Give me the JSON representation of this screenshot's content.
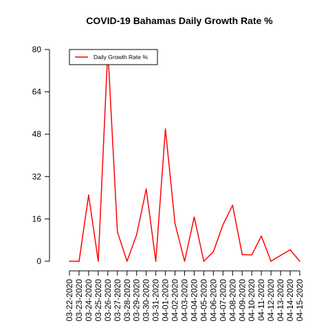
{
  "chart_data": {
    "type": "line",
    "title": "COVID-19 Bahamas Daily Growth Rate %",
    "xlabel": "",
    "ylabel": "",
    "categories": [
      "03-22-2020",
      "03-23-2020",
      "03-24-2020",
      "03-25-2020",
      "03-26-2020",
      "03-27-2020",
      "03-28-2020",
      "03-29-2020",
      "03-30-2020",
      "03-31-2020",
      "04-01-2020",
      "04-02-2020",
      "04-03-2020",
      "04-04-2020",
      "04-05-2020",
      "04-06-2020",
      "04-07-2020",
      "04-08-2020",
      "04-09-2020",
      "04-10-2020",
      "04-11-2020",
      "04-12-2020",
      "04-13-2020",
      "04-14-2020",
      "04-15-2020"
    ],
    "series": [
      {
        "name": "Daily Growth Rate %",
        "color": "#ff0000",
        "values": [
          0,
          0,
          25,
          0,
          80,
          11.1,
          0,
          10,
          27.3,
          0,
          50,
          14.3,
          0,
          16.7,
          0,
          3.6,
          13.8,
          21.2,
          2.5,
          2.4,
          9.5,
          0,
          2.2,
          4.3,
          0
        ]
      }
    ],
    "ylim": [
      0,
      80
    ],
    "yticks": [
      0,
      16,
      32,
      48,
      64,
      80
    ],
    "grid": false,
    "legend_position": "top-left"
  }
}
